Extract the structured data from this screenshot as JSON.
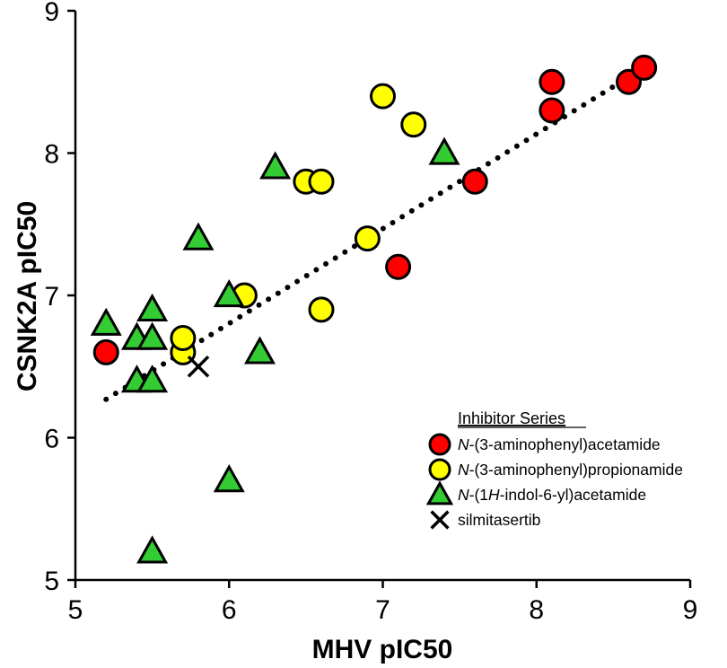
{
  "chart_data": {
    "type": "scatter",
    "title": "",
    "xlabel": "MHV pIC50",
    "ylabel": "CSNK2A pIC50",
    "xlim": [
      5,
      9
    ],
    "ylim": [
      5,
      9
    ],
    "x_ticks": [
      "5",
      "6",
      "7",
      "8",
      "9"
    ],
    "y_ticks": [
      "5",
      "6",
      "7",
      "8",
      "9"
    ],
    "grid": false,
    "legend_title": "Inhibitor Series",
    "legend_position": "bottom-right",
    "series": [
      {
        "name": "N-(3-aminophenyl)acetamide",
        "name_italic": "N",
        "name_rest": "-(3-aminophenyl)acetamide",
        "marker": "circle",
        "color": "#ff0000",
        "points": [
          {
            "x": 5.2,
            "y": 6.6
          },
          {
            "x": 7.1,
            "y": 7.2
          },
          {
            "x": 7.6,
            "y": 7.8
          },
          {
            "x": 8.1,
            "y": 8.3
          },
          {
            "x": 8.1,
            "y": 8.5
          },
          {
            "x": 8.6,
            "y": 8.5
          },
          {
            "x": 8.7,
            "y": 8.6
          }
        ]
      },
      {
        "name": "N-(3-aminophenyl)propionamide",
        "name_italic": "N",
        "name_rest": "-(3-aminophenyl)propionamide",
        "marker": "circle",
        "color": "#ffff00",
        "points": [
          {
            "x": 5.7,
            "y": 6.6
          },
          {
            "x": 5.7,
            "y": 6.7
          },
          {
            "x": 6.1,
            "y": 7.0
          },
          {
            "x": 6.5,
            "y": 7.8
          },
          {
            "x": 6.6,
            "y": 7.8
          },
          {
            "x": 6.6,
            "y": 6.9
          },
          {
            "x": 6.9,
            "y": 7.4
          },
          {
            "x": 7.0,
            "y": 8.4
          },
          {
            "x": 7.2,
            "y": 8.2
          }
        ]
      },
      {
        "name": "N-(1H-indol-6-yl)acetamide",
        "name_segments": [
          {
            "t": "N",
            "i": true
          },
          {
            "t": "-(1",
            "i": false
          },
          {
            "t": "H",
            "i": true
          },
          {
            "t": "-indol-6-yl)acetamide",
            "i": false
          }
        ],
        "marker": "triangle",
        "color": "#33cc33",
        "points": [
          {
            "x": 5.2,
            "y": 6.8
          },
          {
            "x": 5.4,
            "y": 6.7
          },
          {
            "x": 5.4,
            "y": 6.4
          },
          {
            "x": 5.5,
            "y": 6.9
          },
          {
            "x": 5.5,
            "y": 6.7
          },
          {
            "x": 5.5,
            "y": 6.4
          },
          {
            "x": 5.5,
            "y": 5.2
          },
          {
            "x": 5.8,
            "y": 7.4
          },
          {
            "x": 6.0,
            "y": 7.0
          },
          {
            "x": 6.0,
            "y": 5.7
          },
          {
            "x": 6.2,
            "y": 6.6
          },
          {
            "x": 6.3,
            "y": 7.9
          },
          {
            "x": 7.4,
            "y": 8.0
          }
        ]
      },
      {
        "name": "silmitasertib",
        "marker": "x",
        "color": "#000000",
        "points": [
          {
            "x": 5.8,
            "y": 6.5
          }
        ]
      }
    ],
    "trendline": {
      "style": "dotted",
      "color": "#000000",
      "x": [
        5.2,
        8.7
      ],
      "y": [
        6.27,
        8.6
      ]
    }
  }
}
